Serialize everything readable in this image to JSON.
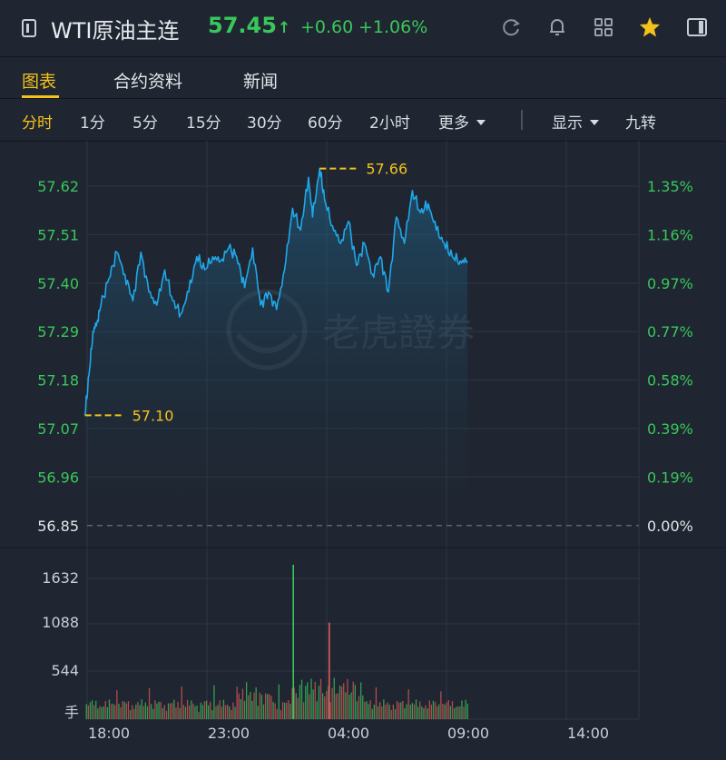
{
  "header": {
    "title": "WTI原油主连",
    "price": "57.45",
    "arrow": "↑",
    "change": "+0.60",
    "change_pct": "+1.06%",
    "icons": [
      "refresh-icon",
      "bell-icon",
      "grid-icon",
      "star-icon",
      "sidebar-icon"
    ]
  },
  "tabs": [
    "图表",
    "合约资料",
    "新闻"
  ],
  "periods": [
    "分时",
    "1分",
    "5分",
    "15分",
    "30分",
    "60分",
    "2小时",
    "更多"
  ],
  "display_label": "显示",
  "jiuzhuan_label": "九转",
  "colors": {
    "background": "#1f2631",
    "line": "#1fa8ea",
    "up": "#39c75b",
    "down": "#e25a5a",
    "accent": "#f4c21b",
    "grid": "#2e3744"
  },
  "watermark": "老虎證券",
  "chart_data": {
    "type": "line",
    "title": "",
    "price_ticks": [
      "57.62",
      "57.51",
      "57.40",
      "57.29",
      "57.18",
      "57.07",
      "56.96",
      "56.85"
    ],
    "pct_ticks": [
      "1.35%",
      "1.16%",
      "0.97%",
      "0.77%",
      "0.58%",
      "0.39%",
      "0.19%",
      "0.00%"
    ],
    "volume_ticks": [
      "1632",
      "1088",
      "544",
      "手"
    ],
    "x_ticks": [
      "18:00",
      "23:00",
      "04:00",
      "09:00",
      "14:00"
    ],
    "ylim": [
      56.85,
      57.7
    ],
    "prev_close": "56.85",
    "high": {
      "label": "57.66",
      "value": 57.66,
      "time": "02:48"
    },
    "low": {
      "label": "57.10",
      "value": 57.1,
      "time": "17:00"
    },
    "series": [
      {
        "x": [
          "17:00",
          "17:10",
          "17:20",
          "17:30",
          "17:40",
          "18:00",
          "18:20",
          "18:40",
          "19:00",
          "19:20",
          "19:40",
          "20:00",
          "20:20",
          "20:40",
          "21:00",
          "21:20",
          "21:40",
          "22:00",
          "22:20",
          "22:40",
          "23:00",
          "23:20",
          "23:40",
          "00:00",
          "00:20",
          "00:40",
          "01:00",
          "01:20",
          "01:40",
          "02:00",
          "02:20",
          "02:30",
          "02:48",
          "03:00",
          "03:20",
          "03:40",
          "04:00",
          "04:20",
          "04:40",
          "05:00",
          "05:20",
          "05:40",
          "06:00",
          "06:20",
          "06:40",
          "07:00",
          "07:20",
          "07:40",
          "08:00",
          "08:20",
          "08:40",
          "08:58"
        ],
        "values": [
          57.1,
          57.19,
          57.29,
          57.31,
          57.35,
          57.41,
          57.47,
          57.42,
          57.36,
          57.47,
          57.38,
          57.35,
          57.43,
          57.36,
          57.33,
          57.38,
          57.46,
          57.43,
          57.46,
          57.45,
          57.48,
          57.46,
          57.39,
          57.48,
          57.35,
          57.38,
          57.34,
          57.43,
          57.57,
          57.52,
          57.64,
          57.55,
          57.66,
          57.59,
          57.53,
          57.49,
          57.54,
          57.44,
          57.49,
          57.42,
          57.46,
          57.38,
          57.55,
          57.49,
          57.61,
          57.56,
          57.58,
          57.52,
          57.49,
          57.46,
          57.45,
          57.45
        ]
      }
    ],
    "volume": {
      "max_tick": 1632,
      "highlight": [
        {
          "time": "01:40",
          "value": 1790
        },
        {
          "time": "03:10",
          "value": 1120
        }
      ]
    }
  }
}
